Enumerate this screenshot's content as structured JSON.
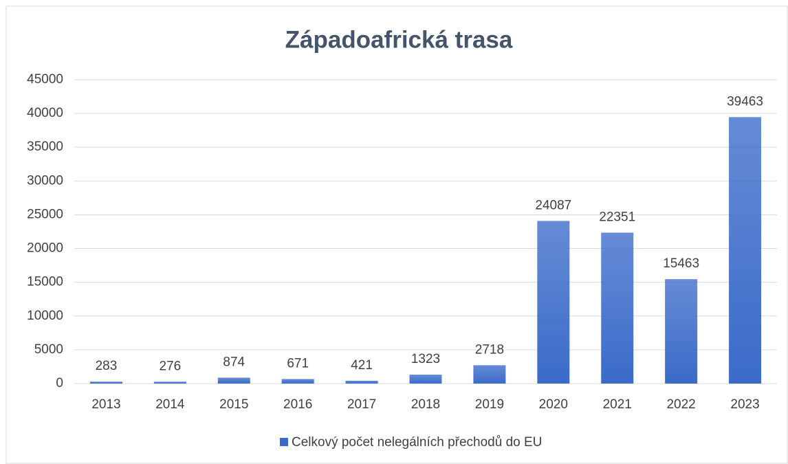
{
  "chart_data": {
    "type": "bar",
    "title": "Západoafrická trasa",
    "categories": [
      "2013",
      "2014",
      "2015",
      "2016",
      "2017",
      "2018",
      "2019",
      "2020",
      "2021",
      "2022",
      "2023"
    ],
    "series": [
      {
        "name": "Celkový počet nelegálních přechodů do EU",
        "color": "#3a6bc9",
        "values": [
          283,
          276,
          874,
          671,
          421,
          1323,
          2718,
          24087,
          22351,
          15463,
          39463
        ]
      }
    ],
    "ylim": [
      0,
      45000
    ],
    "yticks": [
      0,
      5000,
      10000,
      15000,
      20000,
      25000,
      30000,
      35000,
      40000,
      45000
    ],
    "grid": true,
    "legend": "bottom"
  }
}
